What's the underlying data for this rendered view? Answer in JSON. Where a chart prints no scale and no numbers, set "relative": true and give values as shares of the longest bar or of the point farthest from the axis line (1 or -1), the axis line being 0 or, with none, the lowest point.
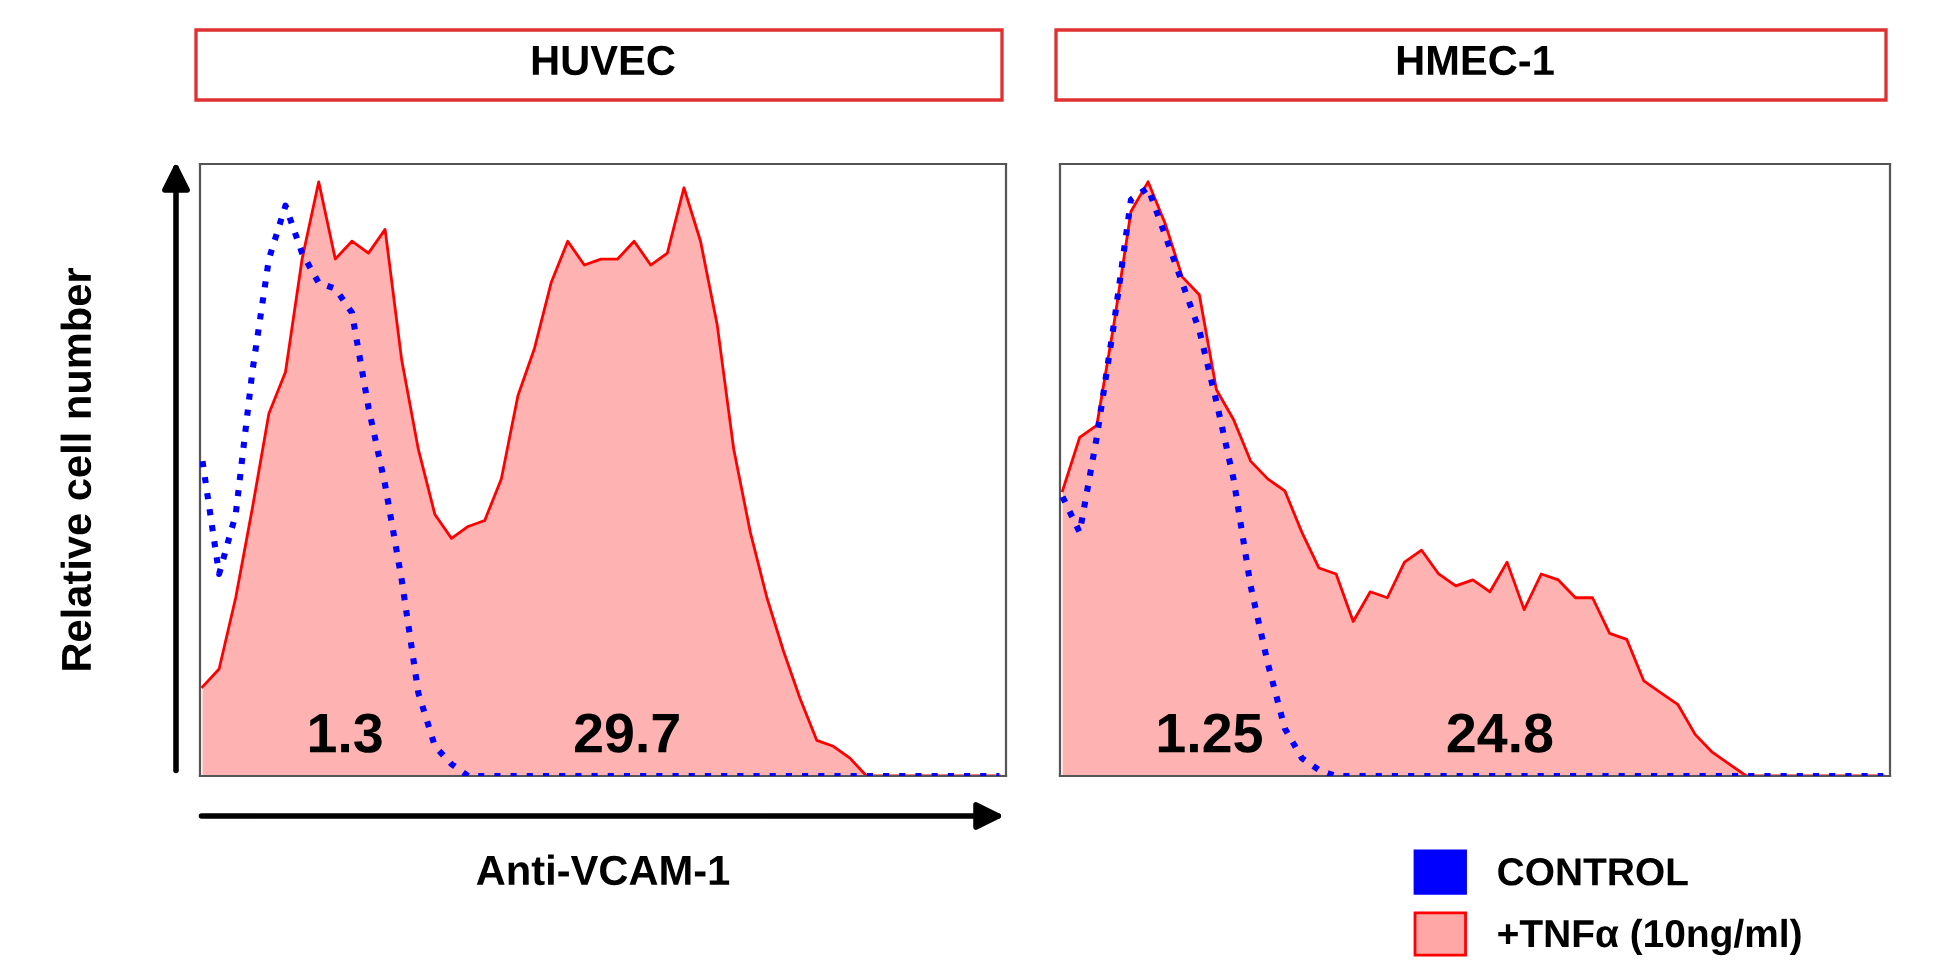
{
  "chart_data": [
    {
      "type": "area",
      "title": "HUVEC",
      "ylabel": "Relative cell number",
      "xlabel": "Anti-VCAM-1",
      "relative": true,
      "legend": "bottom right",
      "categories": [
        null,
        null,
        null,
        null,
        null,
        null,
        null,
        null,
        null,
        null,
        null,
        null,
        null,
        null,
        null,
        null,
        null,
        null,
        null,
        null,
        null,
        null,
        null,
        null,
        null,
        null,
        null,
        null,
        null,
        null,
        null,
        null,
        null,
        null,
        null,
        null,
        null,
        null,
        null,
        null,
        null,
        null,
        null,
        null,
        null,
        null,
        null,
        null,
        null
      ],
      "series": [
        {
          "name": "+TNFα (10ng/ml)",
          "color": "#ff0000",
          "values": [
            0.15,
            0.18,
            0.3,
            0.45,
            0.61,
            0.68,
            0.87,
            1.0,
            0.87,
            0.9,
            0.88,
            0.92,
            0.7,
            0.55,
            0.44,
            0.4,
            0.42,
            0.43,
            0.5,
            0.64,
            0.72,
            0.83,
            0.9,
            0.86,
            0.87,
            0.87,
            0.9,
            0.86,
            0.88,
            0.99,
            0.9,
            0.76,
            0.55,
            0.41,
            0.3,
            0.21,
            0.13,
            0.06,
            0.05,
            0.03,
            0,
            0,
            0,
            0,
            0,
            0,
            0,
            0,
            0
          ]
        },
        {
          "name": "CONTROL",
          "type": "line",
          "line_style": "dotted",
          "color": "#0000ff",
          "values": [
            0.53,
            0.34,
            0.44,
            0.68,
            0.87,
            0.96,
            0.88,
            0.83,
            0.82,
            0.78,
            0.62,
            0.49,
            0.33,
            0.14,
            0.05,
            0.02,
            0,
            0,
            0,
            0,
            0,
            0,
            0,
            0,
            0,
            0,
            0,
            0,
            0,
            0,
            0,
            0,
            0,
            0,
            0,
            0,
            0,
            0,
            0,
            0,
            0,
            0,
            0,
            0,
            0,
            0,
            0,
            0,
            0
          ]
        }
      ],
      "annotations": [
        "1.3",
        "29.7"
      ]
    },
    {
      "type": "area",
      "title": "HMEC-1",
      "relative": true,
      "categories": [
        null,
        null,
        null,
        null,
        null,
        null,
        null,
        null,
        null,
        null,
        null,
        null,
        null,
        null,
        null,
        null,
        null,
        null,
        null,
        null,
        null,
        null,
        null,
        null,
        null,
        null,
        null,
        null,
        null,
        null,
        null,
        null,
        null,
        null,
        null,
        null,
        null,
        null,
        null,
        null,
        null,
        null,
        null,
        null,
        null,
        null,
        null,
        null,
        null
      ],
      "series": [
        {
          "color": "#ff0000",
          "values": [
            0.48,
            0.57,
            0.59,
            0.76,
            0.95,
            1.0,
            0.93,
            0.84,
            0.81,
            0.65,
            0.6,
            0.53,
            0.5,
            0.48,
            0.41,
            0.35,
            0.34,
            0.26,
            0.31,
            0.3,
            0.36,
            0.38,
            0.34,
            0.32,
            0.33,
            0.31,
            0.36,
            0.28,
            0.34,
            0.33,
            0.3,
            0.3,
            0.24,
            0.23,
            0.16,
            0.14,
            0.12,
            0.07,
            0.04,
            0.02,
            0,
            0,
            0,
            0,
            0,
            0,
            0,
            0,
            0
          ]
        },
        {
          "type": "line",
          "line_style": "dotted",
          "color": "#0000ff",
          "values": [
            0.47,
            0.41,
            0.57,
            0.76,
            0.97,
            0.99,
            0.91,
            0.83,
            0.75,
            0.63,
            0.5,
            0.32,
            0.19,
            0.08,
            0.03,
            0.01,
            0,
            0,
            0,
            0,
            0,
            0,
            0,
            0,
            0,
            0,
            0,
            0,
            0,
            0,
            0,
            0,
            0,
            0,
            0,
            0,
            0,
            0,
            0,
            0,
            0,
            0,
            0,
            0,
            0,
            0,
            0,
            0,
            0
          ]
        }
      ],
      "annotations": [
        "1.25",
        "24.8"
      ]
    }
  ]
}
